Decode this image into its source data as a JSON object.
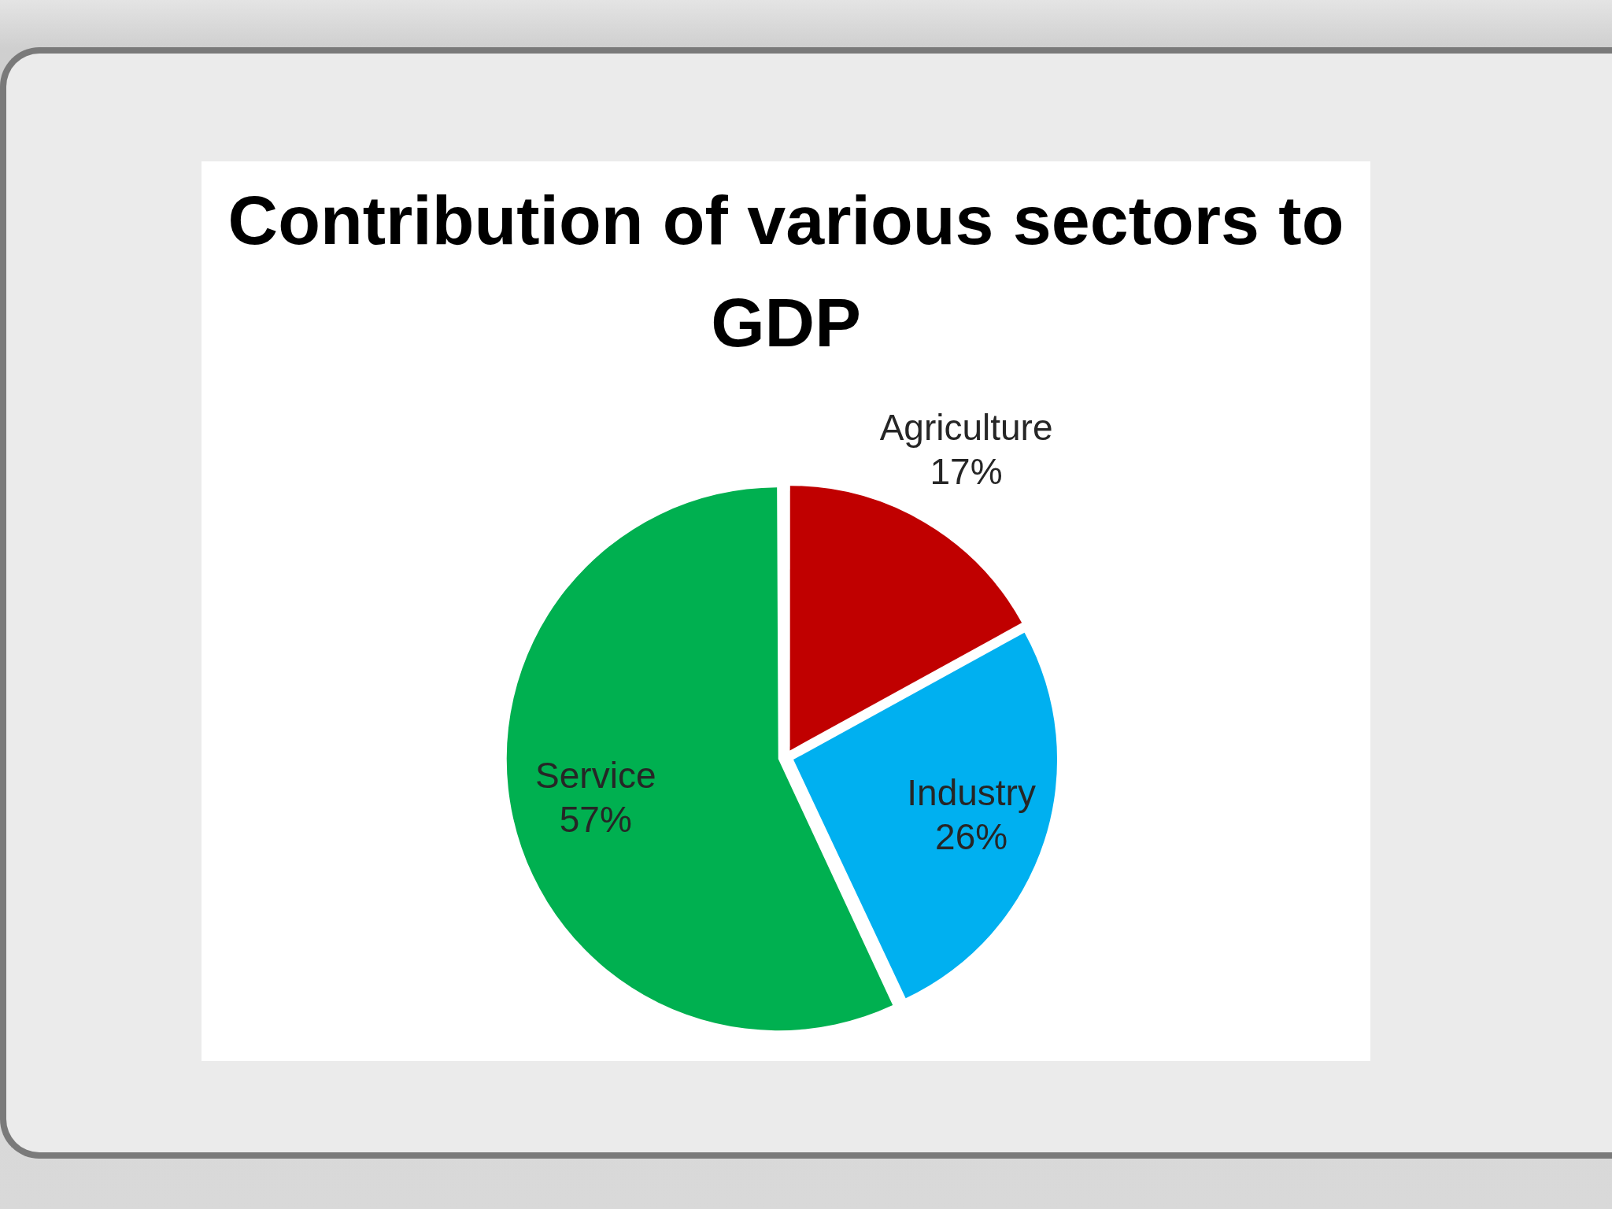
{
  "chart_data": {
    "type": "pie",
    "title": "Contribution of various sectors to GDP",
    "categories": [
      "Agriculture",
      "Industry",
      "Service"
    ],
    "values": [
      17,
      26,
      57
    ],
    "colors": [
      "#c00000",
      "#00b0f0",
      "#00b050"
    ],
    "value_labels": [
      "17%",
      "26%",
      "57%"
    ]
  }
}
